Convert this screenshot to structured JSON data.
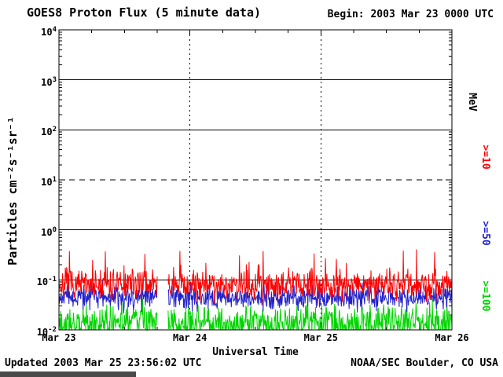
{
  "chart_data": {
    "type": "line",
    "title": "GOES8 Proton Flux (5 minute data)",
    "begin_label": "Begin: 2003 Mar 23 0000 UTC",
    "updated_label": "Updated 2003 Mar 25 23:56:02 UTC",
    "credit_label": "NOAA/SEC Boulder, CO USA",
    "xlabel": "Universal Time",
    "ylabel": "Particles cm⁻²s⁻¹sr⁻¹",
    "right_axis_label": "MeV",
    "x_range_days": 3,
    "x_ticks": [
      "Mar 23",
      "Mar 24",
      "Mar 25",
      "Mar 26"
    ],
    "x_minor_tick_days": 0.25,
    "y_scale": "log",
    "y_log_range": [
      -2,
      4
    ],
    "y_tick_exponents": [
      4,
      3,
      2,
      1,
      0,
      -1,
      -2
    ],
    "hlines": [
      {
        "exp": 3,
        "style": "solid"
      },
      {
        "exp": 2,
        "style": "solid"
      },
      {
        "exp": 1,
        "style": "dashed"
      },
      {
        "exp": 0,
        "style": "solid"
      },
      {
        "exp": -1,
        "style": "solid"
      }
    ],
    "vlines_days": [
      1,
      2
    ],
    "data_gap_days": [
      0.75,
      0.83
    ],
    "interval_minutes": 5,
    "axis_color": "#000000",
    "background_color": "#ffffff",
    "series": [
      {
        "name": ">=10",
        "unit": "MeV",
        "color": "#ff0000",
        "approx_log10_mean": -1.1,
        "log10_sigma": 0.15,
        "spike_prob": 0.05,
        "spike_max": 0.65,
        "seed": 7
      },
      {
        "name": ">=50",
        "unit": "MeV",
        "color": "#2222cc",
        "approx_log10_mean": -1.35,
        "log10_sigma": 0.12,
        "spike_prob": 0.04,
        "spike_max": 0.35,
        "seed": 42
      },
      {
        "name": ">=100",
        "unit": "MeV",
        "color": "#00d400",
        "approx_log10_mean": -1.85,
        "log10_sigma": 0.18,
        "spike_prob": 0.03,
        "spike_max": 0.3,
        "seed": 1337
      }
    ]
  }
}
